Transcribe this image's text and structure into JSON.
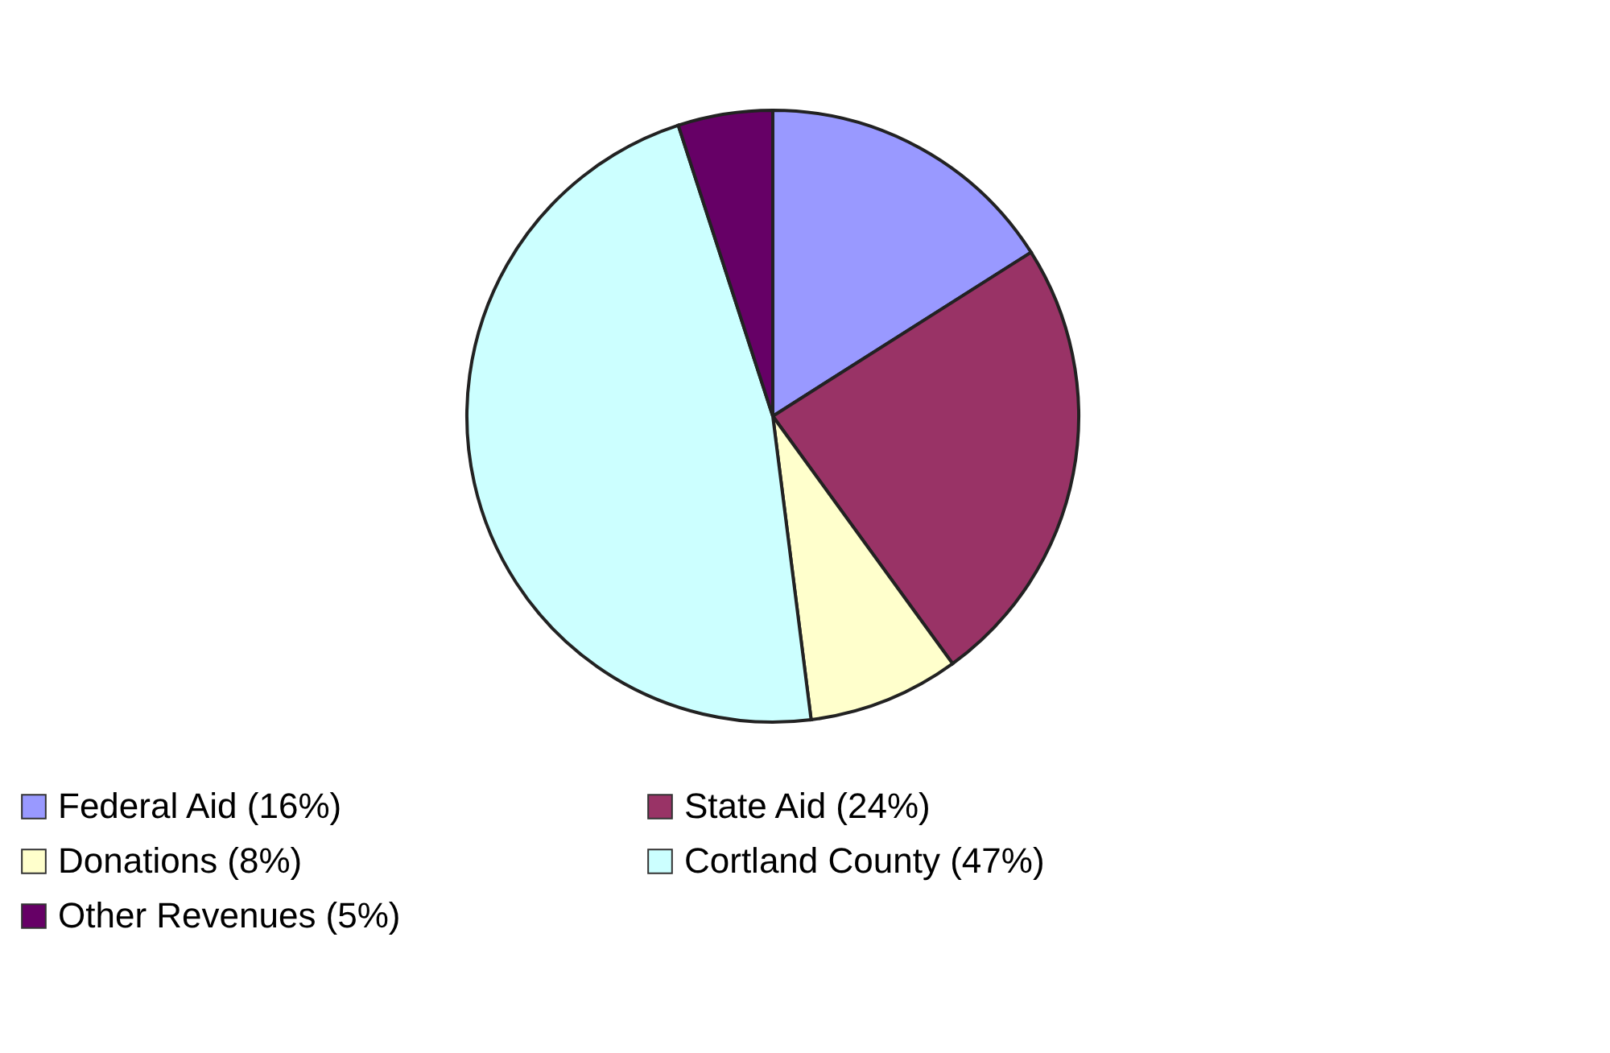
{
  "chart_data": {
    "type": "pie",
    "categories": [
      "Federal Aid (16%)",
      "State Aid (24%)",
      "Donations (8%)",
      "Cortland County (47%)",
      "Other Revenues (5%)"
    ],
    "values": [
      16,
      24,
      8,
      47,
      5
    ],
    "colors": [
      "#9999ff",
      "#993366",
      "#ffffcc",
      "#ccffff",
      "#660066"
    ],
    "legend": "bottom"
  }
}
